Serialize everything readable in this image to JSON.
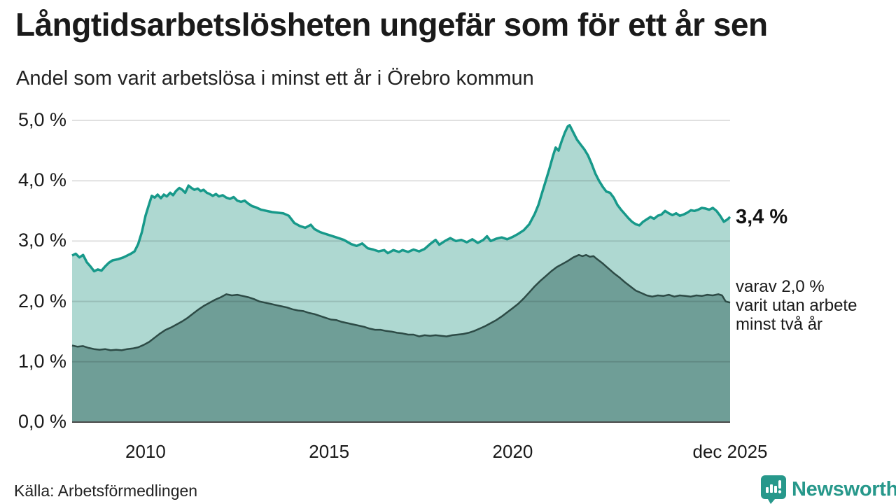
{
  "header": {
    "title": "Långtidsarbetslösheten ungefär som för ett år sen",
    "subtitle": "Andel som varit arbetslösa i minst ett år i Örebro kommun"
  },
  "annotations": {
    "series1_end_value": "3,4 %",
    "series2_line1": "varav 2,0 %",
    "series2_line2": "varit utan arbete",
    "series2_line3": "minst två år"
  },
  "footer": {
    "source": "Källa: Arbetsförmedlingen",
    "brand": "Newsworthy"
  },
  "colors": {
    "accent_line": "#17998a",
    "accent_fill": "#aed8d1",
    "dark_line": "#2d4b46",
    "dark_fill": "#6f9e97",
    "grid": "rgba(0,0,0,0.12)",
    "axis": "#4a4a4a",
    "brand_teal": "#27988b"
  },
  "chart_data": {
    "type": "area",
    "title": "Långtidsarbetslösheten ungefär som för ett år sen",
    "subtitle": "Andel som varit arbetslösa i minst ett år i Örebro kommun",
    "x_domain": [
      2008.0,
      2025.92
    ],
    "y_domain": [
      0,
      5
    ],
    "grid": true,
    "yticks": [
      {
        "label": "5,0 %",
        "value": 5.0
      },
      {
        "label": "4,0 %",
        "value": 4.0
      },
      {
        "label": "3,0 %",
        "value": 3.0
      },
      {
        "label": "2,0 %",
        "value": 2.0
      },
      {
        "label": "1,0 %",
        "value": 1.0
      },
      {
        "label": "0,0 %",
        "value": 0.0
      }
    ],
    "xticks": [
      {
        "label": "2010",
        "year": 2010
      },
      {
        "label": "2015",
        "year": 2015
      },
      {
        "label": "2020",
        "year": 2020
      },
      {
        "label": "dec 2025",
        "year": 2025.92
      }
    ],
    "series": [
      {
        "name": "Andel som varit arbetslösa i minst ett år",
        "end_label": "3,4 %",
        "end_value": 3.4,
        "points": [
          [
            2008.0,
            2.76
          ],
          [
            2008.1,
            2.79
          ],
          [
            2008.2,
            2.73
          ],
          [
            2008.3,
            2.77
          ],
          [
            2008.4,
            2.65
          ],
          [
            2008.5,
            2.58
          ],
          [
            2008.6,
            2.5
          ],
          [
            2008.7,
            2.53
          ],
          [
            2008.8,
            2.51
          ],
          [
            2008.9,
            2.58
          ],
          [
            2009.0,
            2.64
          ],
          [
            2009.1,
            2.68
          ],
          [
            2009.25,
            2.7
          ],
          [
            2009.4,
            2.73
          ],
          [
            2009.5,
            2.76
          ],
          [
            2009.6,
            2.79
          ],
          [
            2009.7,
            2.83
          ],
          [
            2009.8,
            2.95
          ],
          [
            2009.9,
            3.15
          ],
          [
            2010.0,
            3.42
          ],
          [
            2010.1,
            3.62
          ],
          [
            2010.17,
            3.75
          ],
          [
            2010.25,
            3.72
          ],
          [
            2010.33,
            3.77
          ],
          [
            2010.42,
            3.71
          ],
          [
            2010.5,
            3.77
          ],
          [
            2010.58,
            3.74
          ],
          [
            2010.67,
            3.8
          ],
          [
            2010.75,
            3.76
          ],
          [
            2010.83,
            3.83
          ],
          [
            2010.92,
            3.88
          ],
          [
            2011.0,
            3.85
          ],
          [
            2011.08,
            3.8
          ],
          [
            2011.17,
            3.92
          ],
          [
            2011.25,
            3.88
          ],
          [
            2011.33,
            3.85
          ],
          [
            2011.42,
            3.87
          ],
          [
            2011.5,
            3.83
          ],
          [
            2011.58,
            3.85
          ],
          [
            2011.67,
            3.8
          ],
          [
            2011.75,
            3.78
          ],
          [
            2011.83,
            3.75
          ],
          [
            2011.92,
            3.78
          ],
          [
            2012.0,
            3.74
          ],
          [
            2012.1,
            3.76
          ],
          [
            2012.2,
            3.72
          ],
          [
            2012.3,
            3.7
          ],
          [
            2012.4,
            3.73
          ],
          [
            2012.5,
            3.67
          ],
          [
            2012.6,
            3.65
          ],
          [
            2012.7,
            3.67
          ],
          [
            2012.8,
            3.62
          ],
          [
            2012.9,
            3.58
          ],
          [
            2013.0,
            3.56
          ],
          [
            2013.15,
            3.52
          ],
          [
            2013.3,
            3.5
          ],
          [
            2013.45,
            3.48
          ],
          [
            2013.6,
            3.47
          ],
          [
            2013.75,
            3.46
          ],
          [
            2013.9,
            3.42
          ],
          [
            2014.05,
            3.3
          ],
          [
            2014.2,
            3.25
          ],
          [
            2014.35,
            3.22
          ],
          [
            2014.5,
            3.27
          ],
          [
            2014.6,
            3.2
          ],
          [
            2014.75,
            3.15
          ],
          [
            2014.9,
            3.12
          ],
          [
            2015.0,
            3.1
          ],
          [
            2015.2,
            3.06
          ],
          [
            2015.4,
            3.02
          ],
          [
            2015.6,
            2.95
          ],
          [
            2015.75,
            2.92
          ],
          [
            2015.9,
            2.96
          ],
          [
            2016.05,
            2.88
          ],
          [
            2016.2,
            2.86
          ],
          [
            2016.35,
            2.83
          ],
          [
            2016.5,
            2.85
          ],
          [
            2016.6,
            2.8
          ],
          [
            2016.75,
            2.85
          ],
          [
            2016.9,
            2.82
          ],
          [
            2017.0,
            2.85
          ],
          [
            2017.15,
            2.82
          ],
          [
            2017.3,
            2.86
          ],
          [
            2017.45,
            2.83
          ],
          [
            2017.6,
            2.87
          ],
          [
            2017.75,
            2.95
          ],
          [
            2017.9,
            3.02
          ],
          [
            2018.0,
            2.94
          ],
          [
            2018.15,
            3.0
          ],
          [
            2018.3,
            3.05
          ],
          [
            2018.45,
            3.0
          ],
          [
            2018.6,
            3.02
          ],
          [
            2018.75,
            2.98
          ],
          [
            2018.9,
            3.03
          ],
          [
            2019.05,
            2.97
          ],
          [
            2019.2,
            3.02
          ],
          [
            2019.3,
            3.08
          ],
          [
            2019.4,
            3.0
          ],
          [
            2019.55,
            3.04
          ],
          [
            2019.7,
            3.06
          ],
          [
            2019.85,
            3.03
          ],
          [
            2020.0,
            3.07
          ],
          [
            2020.15,
            3.12
          ],
          [
            2020.3,
            3.18
          ],
          [
            2020.45,
            3.28
          ],
          [
            2020.6,
            3.45
          ],
          [
            2020.7,
            3.6
          ],
          [
            2020.8,
            3.8
          ],
          [
            2020.9,
            4.0
          ],
          [
            2021.0,
            4.2
          ],
          [
            2021.1,
            4.42
          ],
          [
            2021.17,
            4.55
          ],
          [
            2021.25,
            4.5
          ],
          [
            2021.33,
            4.65
          ],
          [
            2021.42,
            4.8
          ],
          [
            2021.5,
            4.9
          ],
          [
            2021.55,
            4.92
          ],
          [
            2021.65,
            4.8
          ],
          [
            2021.75,
            4.68
          ],
          [
            2021.85,
            4.6
          ],
          [
            2021.95,
            4.52
          ],
          [
            2022.05,
            4.42
          ],
          [
            2022.15,
            4.28
          ],
          [
            2022.25,
            4.12
          ],
          [
            2022.35,
            4.0
          ],
          [
            2022.45,
            3.9
          ],
          [
            2022.55,
            3.82
          ],
          [
            2022.65,
            3.8
          ],
          [
            2022.75,
            3.72
          ],
          [
            2022.85,
            3.6
          ],
          [
            2022.95,
            3.52
          ],
          [
            2023.05,
            3.45
          ],
          [
            2023.15,
            3.38
          ],
          [
            2023.25,
            3.32
          ],
          [
            2023.35,
            3.28
          ],
          [
            2023.45,
            3.26
          ],
          [
            2023.55,
            3.32
          ],
          [
            2023.65,
            3.36
          ],
          [
            2023.75,
            3.4
          ],
          [
            2023.85,
            3.37
          ],
          [
            2023.95,
            3.42
          ],
          [
            2024.05,
            3.44
          ],
          [
            2024.15,
            3.5
          ],
          [
            2024.25,
            3.46
          ],
          [
            2024.35,
            3.43
          ],
          [
            2024.45,
            3.46
          ],
          [
            2024.55,
            3.42
          ],
          [
            2024.65,
            3.44
          ],
          [
            2024.75,
            3.47
          ],
          [
            2024.85,
            3.51
          ],
          [
            2024.95,
            3.5
          ],
          [
            2025.05,
            3.52
          ],
          [
            2025.15,
            3.55
          ],
          [
            2025.25,
            3.54
          ],
          [
            2025.35,
            3.52
          ],
          [
            2025.45,
            3.55
          ],
          [
            2025.55,
            3.5
          ],
          [
            2025.65,
            3.42
          ],
          [
            2025.75,
            3.32
          ],
          [
            2025.85,
            3.36
          ],
          [
            2025.92,
            3.4
          ]
        ]
      },
      {
        "name": "varav varit utan arbete minst två år",
        "end_label": "varav 2,0 % varit utan arbete minst två år",
        "end_value": 2.0,
        "points": [
          [
            2008.0,
            1.27
          ],
          [
            2008.15,
            1.25
          ],
          [
            2008.3,
            1.26
          ],
          [
            2008.45,
            1.23
          ],
          [
            2008.6,
            1.21
          ],
          [
            2008.75,
            1.2
          ],
          [
            2008.9,
            1.21
          ],
          [
            2009.05,
            1.19
          ],
          [
            2009.2,
            1.2
          ],
          [
            2009.35,
            1.19
          ],
          [
            2009.5,
            1.21
          ],
          [
            2009.65,
            1.22
          ],
          [
            2009.8,
            1.24
          ],
          [
            2009.95,
            1.28
          ],
          [
            2010.1,
            1.33
          ],
          [
            2010.25,
            1.4
          ],
          [
            2010.4,
            1.47
          ],
          [
            2010.55,
            1.53
          ],
          [
            2010.7,
            1.57
          ],
          [
            2010.85,
            1.62
          ],
          [
            2011.0,
            1.67
          ],
          [
            2011.15,
            1.73
          ],
          [
            2011.3,
            1.8
          ],
          [
            2011.45,
            1.87
          ],
          [
            2011.6,
            1.93
          ],
          [
            2011.75,
            1.98
          ],
          [
            2011.9,
            2.03
          ],
          [
            2012.05,
            2.07
          ],
          [
            2012.2,
            2.12
          ],
          [
            2012.35,
            2.1
          ],
          [
            2012.5,
            2.11
          ],
          [
            2012.65,
            2.09
          ],
          [
            2012.8,
            2.07
          ],
          [
            2012.95,
            2.04
          ],
          [
            2013.1,
            2.0
          ],
          [
            2013.25,
            1.98
          ],
          [
            2013.4,
            1.96
          ],
          [
            2013.55,
            1.94
          ],
          [
            2013.7,
            1.92
          ],
          [
            2013.85,
            1.9
          ],
          [
            2014.0,
            1.87
          ],
          [
            2014.15,
            1.85
          ],
          [
            2014.3,
            1.84
          ],
          [
            2014.45,
            1.81
          ],
          [
            2014.6,
            1.79
          ],
          [
            2014.75,
            1.76
          ],
          [
            2014.9,
            1.73
          ],
          [
            2015.05,
            1.7
          ],
          [
            2015.2,
            1.69
          ],
          [
            2015.35,
            1.66
          ],
          [
            2015.5,
            1.64
          ],
          [
            2015.65,
            1.62
          ],
          [
            2015.8,
            1.6
          ],
          [
            2015.95,
            1.58
          ],
          [
            2016.1,
            1.55
          ],
          [
            2016.25,
            1.53
          ],
          [
            2016.4,
            1.53
          ],
          [
            2016.55,
            1.51
          ],
          [
            2016.7,
            1.5
          ],
          [
            2016.85,
            1.48
          ],
          [
            2017.0,
            1.47
          ],
          [
            2017.15,
            1.45
          ],
          [
            2017.3,
            1.45
          ],
          [
            2017.45,
            1.42
          ],
          [
            2017.6,
            1.44
          ],
          [
            2017.75,
            1.43
          ],
          [
            2017.9,
            1.44
          ],
          [
            2018.05,
            1.43
          ],
          [
            2018.2,
            1.42
          ],
          [
            2018.35,
            1.44
          ],
          [
            2018.5,
            1.45
          ],
          [
            2018.65,
            1.46
          ],
          [
            2018.8,
            1.48
          ],
          [
            2018.95,
            1.51
          ],
          [
            2019.1,
            1.55
          ],
          [
            2019.25,
            1.59
          ],
          [
            2019.4,
            1.64
          ],
          [
            2019.55,
            1.69
          ],
          [
            2019.7,
            1.75
          ],
          [
            2019.85,
            1.82
          ],
          [
            2020.0,
            1.89
          ],
          [
            2020.15,
            1.96
          ],
          [
            2020.3,
            2.05
          ],
          [
            2020.45,
            2.15
          ],
          [
            2020.6,
            2.25
          ],
          [
            2020.75,
            2.34
          ],
          [
            2020.9,
            2.42
          ],
          [
            2021.05,
            2.5
          ],
          [
            2021.2,
            2.57
          ],
          [
            2021.35,
            2.62
          ],
          [
            2021.5,
            2.67
          ],
          [
            2021.65,
            2.73
          ],
          [
            2021.8,
            2.77
          ],
          [
            2021.9,
            2.75
          ],
          [
            2022.0,
            2.77
          ],
          [
            2022.1,
            2.74
          ],
          [
            2022.2,
            2.75
          ],
          [
            2022.3,
            2.7
          ],
          [
            2022.45,
            2.63
          ],
          [
            2022.6,
            2.55
          ],
          [
            2022.75,
            2.47
          ],
          [
            2022.9,
            2.4
          ],
          [
            2023.05,
            2.32
          ],
          [
            2023.2,
            2.25
          ],
          [
            2023.35,
            2.18
          ],
          [
            2023.5,
            2.14
          ],
          [
            2023.65,
            2.1
          ],
          [
            2023.8,
            2.08
          ],
          [
            2023.95,
            2.1
          ],
          [
            2024.1,
            2.09
          ],
          [
            2024.25,
            2.11
          ],
          [
            2024.4,
            2.08
          ],
          [
            2024.55,
            2.1
          ],
          [
            2024.7,
            2.09
          ],
          [
            2024.85,
            2.08
          ],
          [
            2025.0,
            2.1
          ],
          [
            2025.15,
            2.09
          ],
          [
            2025.3,
            2.11
          ],
          [
            2025.45,
            2.1
          ],
          [
            2025.6,
            2.12
          ],
          [
            2025.7,
            2.1
          ],
          [
            2025.8,
            2.0
          ],
          [
            2025.92,
            1.98
          ]
        ]
      }
    ]
  }
}
